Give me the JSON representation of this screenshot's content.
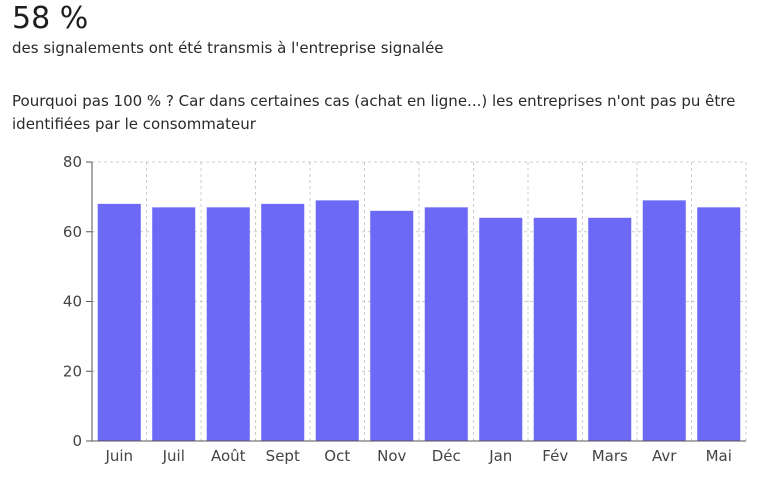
{
  "headline": {
    "value": "58 %",
    "caption": "des signalements ont été transmis à l'entreprise signalée"
  },
  "note": "Pourquoi pas 100 % ? Car dans certaines cas (achat en ligne...) les entreprises n'ont pas pu être identifiées par le consommateur",
  "chart_data": {
    "type": "bar",
    "categories": [
      "Juin",
      "Juil",
      "Août",
      "Sept",
      "Oct",
      "Nov",
      "Déc",
      "Jan",
      "Fév",
      "Mars",
      "Avr",
      "Mai"
    ],
    "values": [
      68,
      67,
      67,
      68,
      69,
      66,
      67,
      64,
      64,
      64,
      69,
      67
    ],
    "ylim": [
      0,
      80
    ],
    "yticks": [
      0,
      20,
      40,
      60,
      80
    ],
    "grid": true,
    "title": "",
    "xlabel": "",
    "ylabel": "",
    "bar_color": "#6b69f5",
    "grid_color": "#cccccc",
    "axis_color": "#555555"
  }
}
